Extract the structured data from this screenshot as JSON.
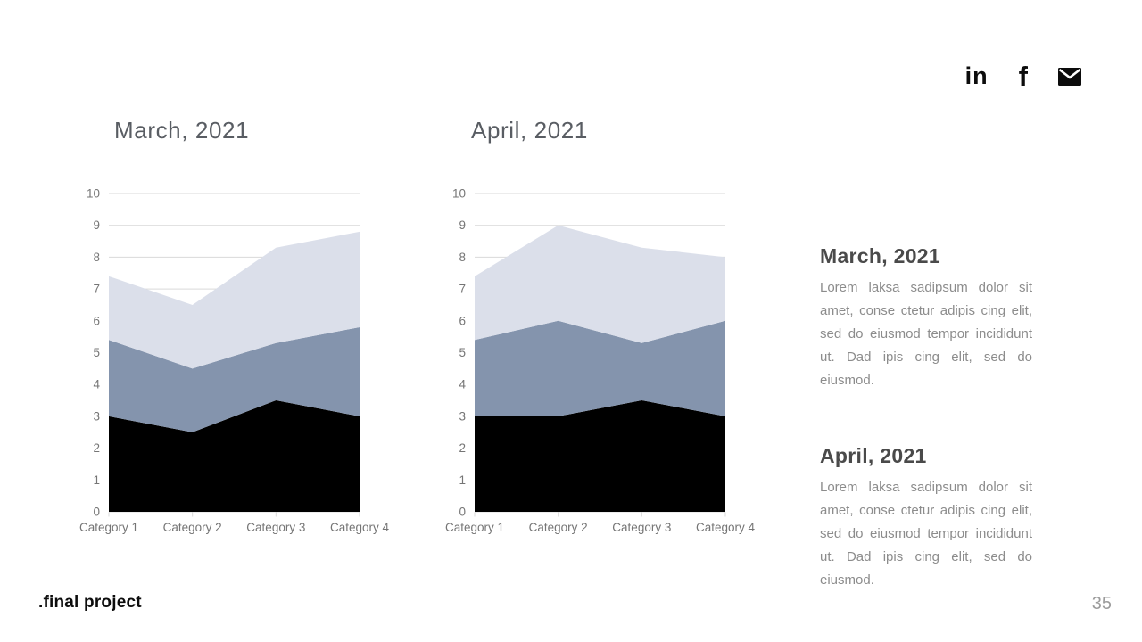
{
  "slide": {
    "brand": ".final project",
    "page_number": "35"
  },
  "social_icons": [
    {
      "name": "linkedin",
      "glyph": "in"
    },
    {
      "name": "facebook",
      "glyph": "f"
    },
    {
      "name": "mail"
    }
  ],
  "colors": {
    "series_dark": "#000000",
    "series_mid": "#8494ad",
    "series_light": "#dbdfea",
    "gridline": "#d9d9d9",
    "axis_label": "#757575",
    "icon": "#0c0c0c"
  },
  "chart_data": [
    {
      "type": "area",
      "stacked": true,
      "title": "March, 2021",
      "categories": [
        "Category 1",
        "Category 2",
        "Category 3",
        "Category 4"
      ],
      "series": [
        {
          "color": "#000000",
          "values": [
            3,
            2.5,
            3.5,
            3
          ]
        },
        {
          "color": "#8494ad",
          "values": [
            2.4,
            2,
            1.8,
            2.8
          ]
        },
        {
          "color": "#dbdfea",
          "values": [
            2,
            2,
            3,
            3
          ]
        }
      ],
      "ylim": [
        0,
        10
      ],
      "ytick_step": 1,
      "grid": true,
      "legend": false
    },
    {
      "type": "area",
      "stacked": true,
      "title": "April, 2021",
      "categories": [
        "Category 1",
        "Category 2",
        "Category 3",
        "Category 4"
      ],
      "series": [
        {
          "color": "#000000",
          "values": [
            3,
            3,
            3.5,
            3
          ]
        },
        {
          "color": "#8494ad",
          "values": [
            2.4,
            3,
            1.8,
            3
          ]
        },
        {
          "color": "#dbdfea",
          "values": [
            2,
            3,
            3,
            2
          ]
        }
      ],
      "ylim": [
        0,
        10
      ],
      "ytick_step": 1,
      "grid": true,
      "legend": false
    }
  ],
  "sidebar": {
    "blocks": [
      {
        "heading": "March, 2021",
        "body": "Lorem laksa sadipsum dolor sit amet, conse ctetur adipis cing elit, sed do eiusmod tempor incididunt ut. Dad ipis cing elit, sed do eiusmod."
      },
      {
        "heading": "April, 2021",
        "body": "Lorem laksa sadipsum dolor sit amet, conse ctetur adipis cing elit, sed do eiusmod tempor incididunt ut. Dad ipis cing elit, sed do eiusmod."
      }
    ]
  }
}
